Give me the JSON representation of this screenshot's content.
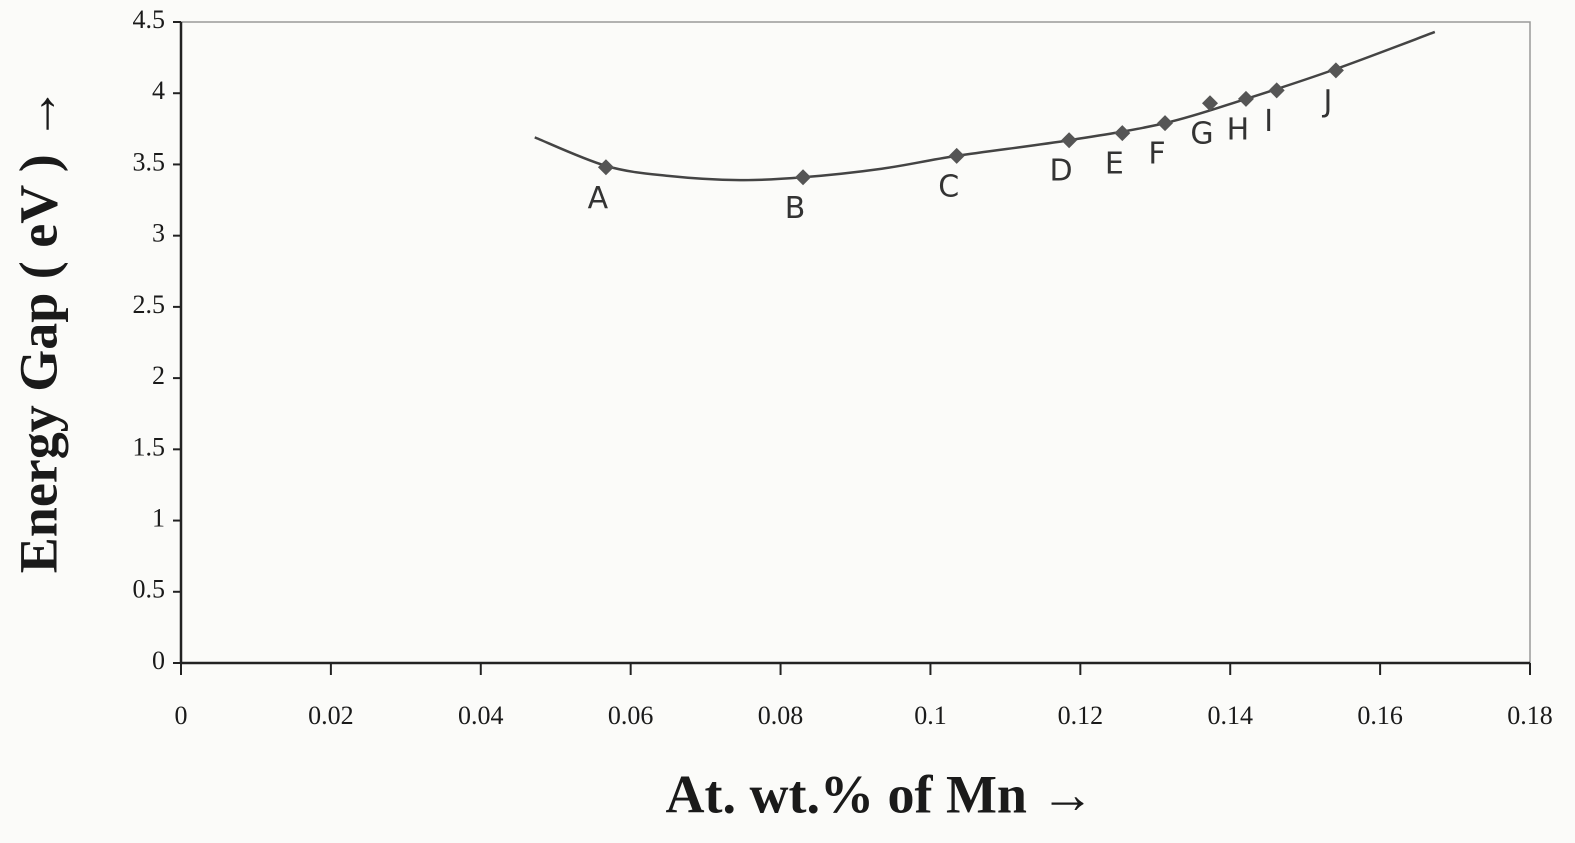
{
  "chart_data": {
    "type": "scatter",
    "x_label": "At. wt.% of Mn  →",
    "y_label": "Energy Gap ( eV )  →",
    "x": [
      0.0567,
      0.083,
      0.1035,
      0.1185,
      0.1256,
      0.1313,
      0.1373,
      0.1421,
      0.1462,
      0.1541
    ],
    "values": [
      3.48,
      3.41,
      3.56,
      3.67,
      3.72,
      3.79,
      3.93,
      3.96,
      4.02,
      4.16
    ],
    "point_labels": [
      "A",
      "B",
      "C",
      "D",
      "E",
      "F",
      "G",
      "H",
      "I",
      "J"
    ],
    "color": "#555555",
    "curve": {
      "x": [
        0.0472,
        0.0567,
        0.065,
        0.0746,
        0.083,
        0.0935,
        0.1035,
        0.1185,
        0.1313,
        0.1421,
        0.1541,
        0.1673
      ],
      "values": [
        3.69,
        3.49,
        3.42,
        3.39,
        3.41,
        3.47,
        3.56,
        3.67,
        3.79,
        3.96,
        4.17,
        4.43
      ]
    },
    "xlim": [
      0,
      0.18
    ],
    "ylim": [
      0,
      4.5
    ],
    "xticks": [
      0,
      0.02,
      0.04,
      0.06,
      0.08,
      0.1,
      0.12,
      0.14,
      0.16,
      0.18
    ],
    "yticks": [
      0,
      0.5,
      1,
      1.5,
      2,
      2.5,
      3,
      3.5,
      4,
      4.5
    ],
    "grid": false
  }
}
